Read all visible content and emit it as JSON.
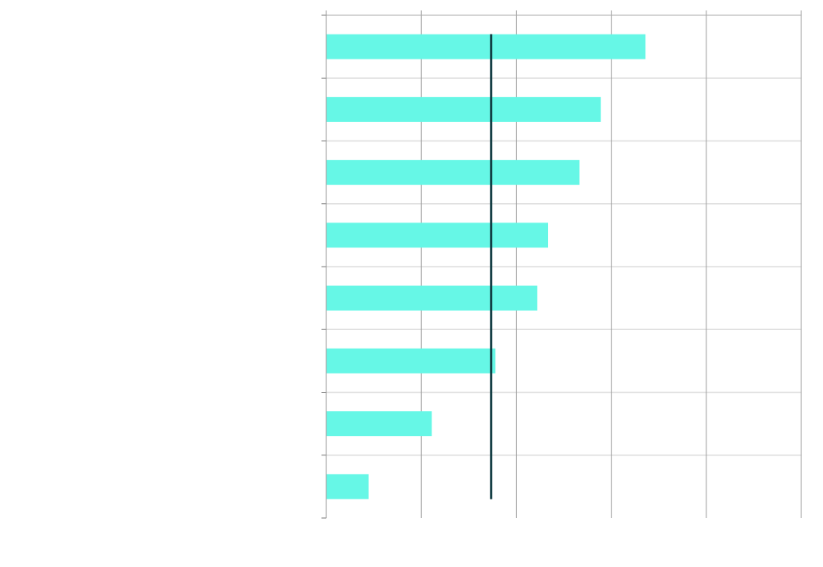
{
  "chart_data": {
    "type": "bar",
    "orientation": "horizontal",
    "title": "",
    "xlabel": "",
    "ylabel": "",
    "categories": [
      "",
      "",
      "",
      "",
      "",
      "",
      "",
      ""
    ],
    "values": [
      67.2,
      57.8,
      53.3,
      46.7,
      44.4,
      35.6,
      22.2,
      8.9
    ],
    "xlim": [
      0,
      100
    ],
    "x_grid_step": 20,
    "grid": true,
    "bar_color": "#66f7e6",
    "reference_line": {
      "value": 34.7,
      "color": "#0f3a40"
    },
    "grid_color_vertical": "#9e9e9e",
    "grid_color_horizontal": "#dddddd"
  }
}
